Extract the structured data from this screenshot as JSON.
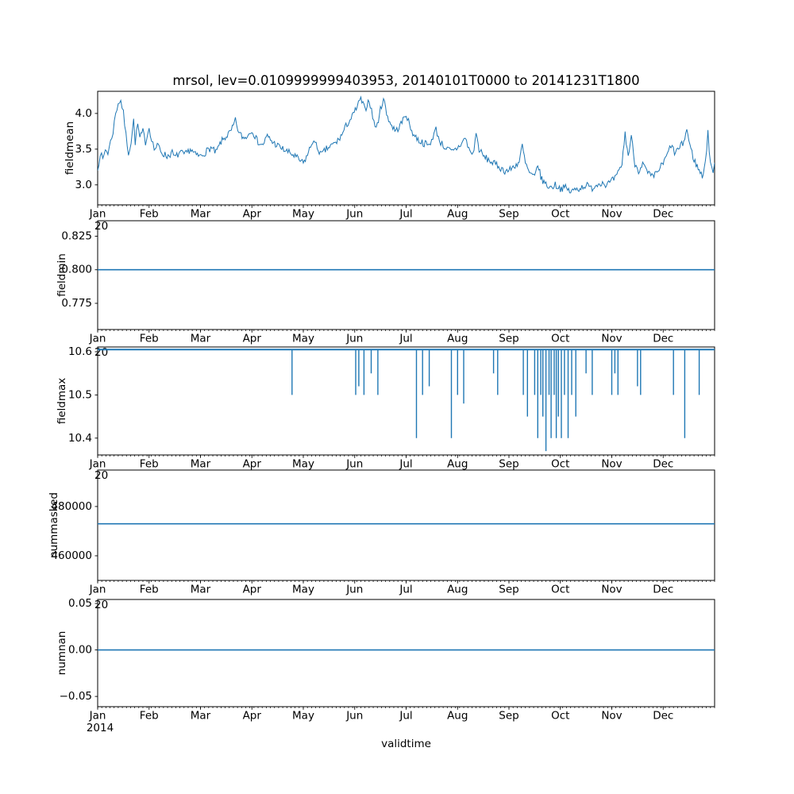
{
  "title": "mrsol, lev=0.0109999999403953, 20140101T0000 to 20141231T1800",
  "colors": {
    "line": "#1f77b4",
    "text": "#000000",
    "background": "#ffffff",
    "spine": "#000000"
  },
  "x_axis": {
    "label": "validtime",
    "offset": "2014",
    "months": [
      "Jan",
      "Feb",
      "Mar",
      "Apr",
      "May",
      "Jun",
      "Jul",
      "Aug",
      "Sep",
      "Oct",
      "Nov",
      "Dec"
    ],
    "xlim_months": [
      0,
      12
    ]
  },
  "chart_data": [
    {
      "type": "line",
      "name": "fieldmean",
      "ylabel": "fieldmean",
      "ylim": [
        2.72,
        4.31
      ],
      "yticks": [
        {
          "v": 3.0,
          "label": "3.0"
        },
        {
          "v": 3.5,
          "label": "3.5"
        },
        {
          "v": 4.0,
          "label": "4.0"
        }
      ],
      "noise": 0.05,
      "points": [
        [
          0,
          3.2
        ],
        [
          0.05,
          3.45
        ],
        [
          0.1,
          3.35
        ],
        [
          0.15,
          3.5
        ],
        [
          0.2,
          3.45
        ],
        [
          0.25,
          3.6
        ],
        [
          0.3,
          3.75
        ],
        [
          0.35,
          4.0
        ],
        [
          0.4,
          4.15
        ],
        [
          0.45,
          4.18
        ],
        [
          0.5,
          4.0
        ],
        [
          0.55,
          3.7
        ],
        [
          0.6,
          3.45
        ],
        [
          0.65,
          3.6
        ],
        [
          0.7,
          3.9
        ],
        [
          0.73,
          3.6
        ],
        [
          0.78,
          3.85
        ],
        [
          0.82,
          3.65
        ],
        [
          0.88,
          3.75
        ],
        [
          0.93,
          3.6
        ],
        [
          1,
          3.8
        ],
        [
          1.05,
          3.65
        ],
        [
          1.1,
          3.5
        ],
        [
          1.18,
          3.55
        ],
        [
          1.25,
          3.45
        ],
        [
          1.35,
          3.4
        ],
        [
          1.45,
          3.45
        ],
        [
          1.5,
          3.38
        ],
        [
          1.6,
          3.45
        ],
        [
          1.7,
          3.42
        ],
        [
          1.8,
          3.5
        ],
        [
          1.9,
          3.42
        ],
        [
          2,
          3.4
        ],
        [
          2.1,
          3.46
        ],
        [
          2.2,
          3.52
        ],
        [
          2.3,
          3.45
        ],
        [
          2.4,
          3.6
        ],
        [
          2.5,
          3.68
        ],
        [
          2.6,
          3.75
        ],
        [
          2.68,
          3.9
        ],
        [
          2.75,
          3.72
        ],
        [
          2.85,
          3.65
        ],
        [
          2.95,
          3.72
        ],
        [
          3,
          3.78
        ],
        [
          3.1,
          3.62
        ],
        [
          3.2,
          3.55
        ],
        [
          3.3,
          3.68
        ],
        [
          3.4,
          3.6
        ],
        [
          3.5,
          3.55
        ],
        [
          3.6,
          3.5
        ],
        [
          3.7,
          3.46
        ],
        [
          3.8,
          3.42
        ],
        [
          3.9,
          3.36
        ],
        [
          4,
          3.3
        ],
        [
          4.1,
          3.45
        ],
        [
          4.18,
          3.62
        ],
        [
          4.25,
          3.55
        ],
        [
          4.35,
          3.42
        ],
        [
          4.45,
          3.5
        ],
        [
          4.55,
          3.55
        ],
        [
          4.65,
          3.6
        ],
        [
          4.75,
          3.7
        ],
        [
          4.85,
          3.85
        ],
        [
          4.95,
          3.95
        ],
        [
          5.05,
          4.1
        ],
        [
          5.12,
          4.2
        ],
        [
          5.2,
          4.05
        ],
        [
          5.28,
          4.2
        ],
        [
          5.35,
          3.95
        ],
        [
          5.42,
          3.78
        ],
        [
          5.5,
          4.05
        ],
        [
          5.56,
          4.22
        ],
        [
          5.62,
          4.0
        ],
        [
          5.7,
          3.85
        ],
        [
          5.8,
          3.75
        ],
        [
          5.9,
          3.85
        ],
        [
          6,
          4.0
        ],
        [
          6.07,
          3.82
        ],
        [
          6.15,
          3.7
        ],
        [
          6.25,
          3.62
        ],
        [
          6.35,
          3.58
        ],
        [
          6.45,
          3.55
        ],
        [
          6.52,
          3.68
        ],
        [
          6.58,
          3.78
        ],
        [
          6.65,
          3.62
        ],
        [
          6.72,
          3.55
        ],
        [
          6.8,
          3.5
        ],
        [
          6.9,
          3.46
        ],
        [
          7,
          3.52
        ],
        [
          7.08,
          3.58
        ],
        [
          7.15,
          3.66
        ],
        [
          7.22,
          3.5
        ],
        [
          7.3,
          3.42
        ],
        [
          7.36,
          3.72
        ],
        [
          7.42,
          3.5
        ],
        [
          7.5,
          3.4
        ],
        [
          7.6,
          3.35
        ],
        [
          7.7,
          3.3
        ],
        [
          7.8,
          3.26
        ],
        [
          7.9,
          3.2
        ],
        [
          8,
          3.2
        ],
        [
          8.1,
          3.26
        ],
        [
          8.2,
          3.32
        ],
        [
          8.26,
          3.55
        ],
        [
          8.32,
          3.3
        ],
        [
          8.4,
          3.16
        ],
        [
          8.5,
          3.1
        ],
        [
          8.56,
          3.3
        ],
        [
          8.62,
          3.1
        ],
        [
          8.7,
          3.02
        ],
        [
          8.8,
          2.96
        ],
        [
          8.9,
          3.0
        ],
        [
          9,
          2.95
        ],
        [
          9.1,
          2.96
        ],
        [
          9.2,
          2.9
        ],
        [
          9.3,
          2.94
        ],
        [
          9.4,
          2.96
        ],
        [
          9.5,
          3.0
        ],
        [
          9.6,
          2.95
        ],
        [
          9.7,
          3.0
        ],
        [
          9.8,
          3.04
        ],
        [
          9.9,
          3.0
        ],
        [
          10,
          3.05
        ],
        [
          10.1,
          3.12
        ],
        [
          10.2,
          3.3
        ],
        [
          10.26,
          3.72
        ],
        [
          10.32,
          3.4
        ],
        [
          10.38,
          3.68
        ],
        [
          10.45,
          3.3
        ],
        [
          10.52,
          3.2
        ],
        [
          10.6,
          3.3
        ],
        [
          10.7,
          3.16
        ],
        [
          10.8,
          3.1
        ],
        [
          10.9,
          3.2
        ],
        [
          11,
          3.3
        ],
        [
          11.08,
          3.42
        ],
        [
          11.15,
          3.56
        ],
        [
          11.22,
          3.45
        ],
        [
          11.3,
          3.5
        ],
        [
          11.4,
          3.6
        ],
        [
          11.46,
          3.78
        ],
        [
          11.52,
          3.55
        ],
        [
          11.6,
          3.35
        ],
        [
          11.7,
          3.2
        ],
        [
          11.76,
          3.12
        ],
        [
          11.82,
          3.32
        ],
        [
          11.87,
          3.72
        ],
        [
          11.92,
          3.3
        ],
        [
          11.97,
          3.2
        ],
        [
          12,
          3.28
        ]
      ]
    },
    {
      "type": "line",
      "name": "fieldmin",
      "ylabel": "fieldmin",
      "ylim": [
        0.7555,
        0.8365
      ],
      "yticks": [
        {
          "v": 0.775,
          "label": "0.775"
        },
        {
          "v": 0.8,
          "label": "0.800"
        },
        {
          "v": 0.825,
          "label": "0.825"
        }
      ],
      "constant": 0.8,
      "stray": "20"
    },
    {
      "type": "line",
      "name": "fieldmax",
      "ylabel": "fieldmax",
      "ylim": [
        10.361,
        10.611
      ],
      "yticks": [
        {
          "v": 10.4,
          "label": "10.4"
        },
        {
          "v": 10.5,
          "label": "10.5"
        },
        {
          "v": 10.6,
          "label": "10.6"
        }
      ],
      "baseline": 10.605,
      "spikes": [
        [
          3.78,
          10.5
        ],
        [
          5.02,
          10.5
        ],
        [
          5.08,
          10.52
        ],
        [
          5.18,
          10.5
        ],
        [
          5.32,
          10.55
        ],
        [
          5.45,
          10.5
        ],
        [
          6.2,
          10.4
        ],
        [
          6.32,
          10.5
        ],
        [
          6.45,
          10.52
        ],
        [
          6.88,
          10.4
        ],
        [
          7.0,
          10.5
        ],
        [
          7.12,
          10.48
        ],
        [
          7.7,
          10.55
        ],
        [
          7.78,
          10.5
        ],
        [
          8.28,
          10.5
        ],
        [
          8.36,
          10.45
        ],
        [
          8.5,
          10.5
        ],
        [
          8.56,
          10.4
        ],
        [
          8.62,
          10.5
        ],
        [
          8.66,
          10.45
        ],
        [
          8.72,
          10.37
        ],
        [
          8.78,
          10.5
        ],
        [
          8.82,
          10.4
        ],
        [
          8.88,
          10.5
        ],
        [
          8.92,
          10.4
        ],
        [
          8.96,
          10.45
        ],
        [
          9.02,
          10.4
        ],
        [
          9.08,
          10.5
        ],
        [
          9.15,
          10.4
        ],
        [
          9.22,
          10.5
        ],
        [
          9.3,
          10.45
        ],
        [
          9.5,
          10.55
        ],
        [
          9.62,
          10.5
        ],
        [
          10.0,
          10.5
        ],
        [
          10.06,
          10.55
        ],
        [
          10.12,
          10.5
        ],
        [
          10.5,
          10.52
        ],
        [
          10.56,
          10.5
        ],
        [
          11.2,
          10.5
        ],
        [
          11.42,
          10.4
        ],
        [
          11.7,
          10.5
        ]
      ],
      "stray": "20"
    },
    {
      "type": "line",
      "name": "nummasked",
      "ylabel": "nummasked",
      "ylim": [
        450000,
        494800
      ],
      "yticks": [
        {
          "v": 460000,
          "label": "460000"
        },
        {
          "v": 480000,
          "label": "480000"
        }
      ],
      "constant": 473000,
      "stray": "20"
    },
    {
      "type": "line",
      "name": "numnan",
      "ylabel": "numnan",
      "ylim": [
        -0.061,
        0.0543
      ],
      "yticks": [
        {
          "v": -0.05,
          "label": "−0.05"
        },
        {
          "v": 0.0,
          "label": "0.00"
        },
        {
          "v": 0.05,
          "label": "0.05"
        }
      ],
      "constant": 0.0,
      "stray": "20"
    }
  ]
}
